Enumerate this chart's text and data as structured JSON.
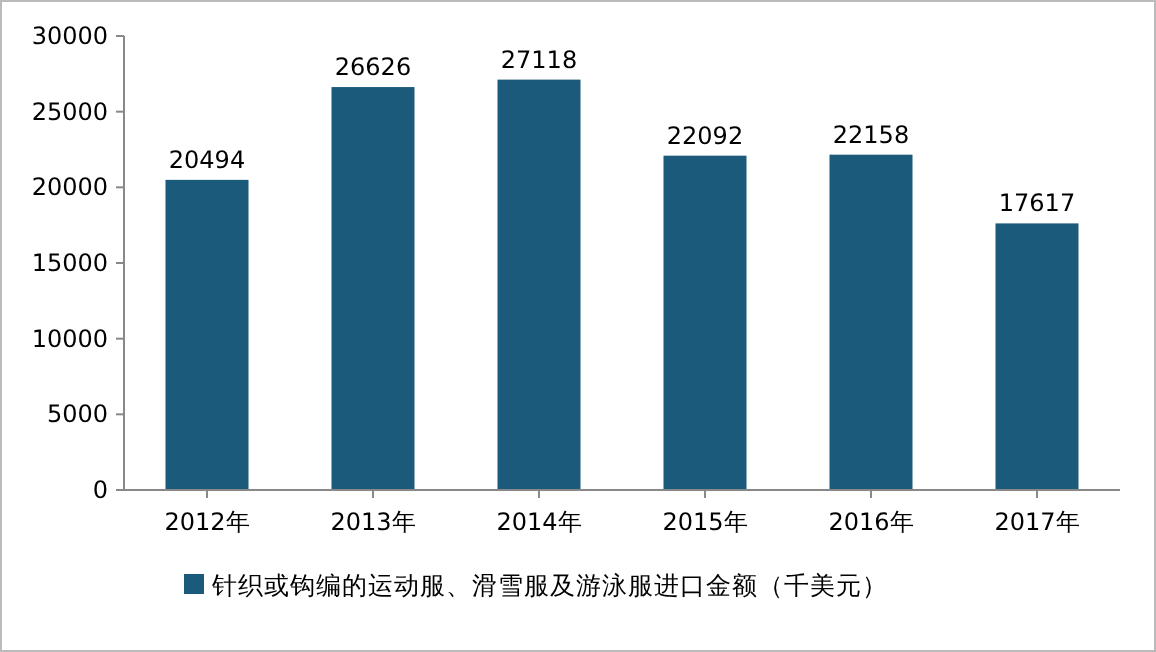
{
  "chart_data": {
    "type": "bar",
    "categories": [
      "2012年",
      "2013年",
      "2014年",
      "2015年",
      "2016年",
      "2017年"
    ],
    "series": [
      {
        "name": "针织或钩编的运动服、滑雪服及游泳服进口金额（千美元）",
        "color": "#1b5a7a",
        "values": [
          20494,
          26626,
          27118,
          22092,
          22158,
          17617
        ]
      }
    ],
    "ylim": [
      0,
      30000
    ],
    "yticks": [
      0,
      5000,
      10000,
      15000,
      20000,
      25000,
      30000
    ],
    "data_labels": true,
    "legend": "bottom",
    "grid": false
  }
}
